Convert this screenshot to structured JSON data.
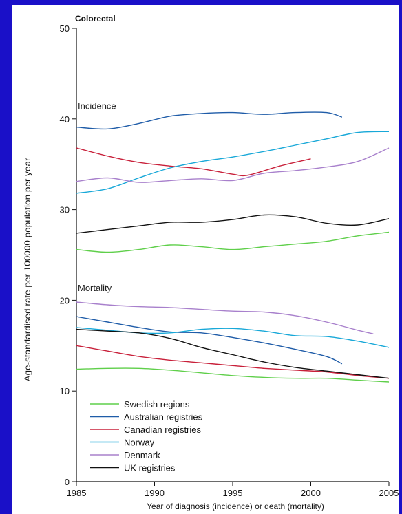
{
  "chart_data": {
    "type": "line",
    "title": "Colorectal",
    "xlabel": "Year of diagnosis (incidence) or death (mortality)",
    "ylabel": "Age-standardised rate per 100000 population per year",
    "xlim": [
      1985,
      2005
    ],
    "ylim": [
      0,
      50
    ],
    "xticks": [
      1985,
      1990,
      1995,
      2000,
      2005
    ],
    "yticks": [
      0,
      10,
      20,
      30,
      40,
      50
    ],
    "grid": false,
    "legend_position": "bottom-left",
    "group_labels": [
      {
        "text": "Incidence",
        "x": 1985,
        "y": 41.1
      },
      {
        "text": "Mortality",
        "x": 1985,
        "y": 21.0
      }
    ],
    "legend": [
      {
        "name": "Swedish regions",
        "color": "#5fcf4a"
      },
      {
        "name": "Australian registries",
        "color": "#1f5ca8"
      },
      {
        "name": "Canadian registries",
        "color": "#c8203a"
      },
      {
        "name": "Norway",
        "color": "#18a8d8"
      },
      {
        "name": "Denmark",
        "color": "#a880cc"
      },
      {
        "name": "UK registries",
        "color": "#111111"
      }
    ],
    "series": [
      {
        "group": "Incidence",
        "color": "#5fcf4a",
        "x": [
          1985,
          1987,
          1989,
          1991,
          1993,
          1995,
          1997,
          1999,
          2001,
          2003,
          2005
        ],
        "y": [
          25.6,
          25.3,
          25.6,
          26.1,
          25.9,
          25.6,
          25.9,
          26.2,
          26.5,
          27.1,
          27.5
        ]
      },
      {
        "group": "Incidence",
        "color": "#1f5ca8",
        "x": [
          1985,
          1987,
          1989,
          1991,
          1993,
          1995,
          1997,
          1999,
          2001,
          2002
        ],
        "y": [
          39.1,
          38.9,
          39.5,
          40.3,
          40.6,
          40.7,
          40.5,
          40.7,
          40.7,
          40.2
        ]
      },
      {
        "group": "Incidence",
        "color": "#c8203a",
        "x": [
          1985,
          1987,
          1989,
          1991,
          1993,
          1995,
          1996,
          1998,
          2000
        ],
        "y": [
          36.8,
          35.9,
          35.2,
          34.8,
          34.5,
          33.9,
          33.8,
          34.8,
          35.6
        ]
      },
      {
        "group": "Incidence",
        "color": "#18a8d8",
        "x": [
          1985,
          1987,
          1989,
          1991,
          1993,
          1995,
          1997,
          1999,
          2001,
          2003,
          2005
        ],
        "y": [
          31.8,
          32.3,
          33.5,
          34.6,
          35.3,
          35.8,
          36.4,
          37.1,
          37.8,
          38.5,
          38.6
        ]
      },
      {
        "group": "Incidence",
        "color": "#a880cc",
        "x": [
          1985,
          1987,
          1989,
          1991,
          1993,
          1995,
          1997,
          1999,
          2001,
          2003,
          2005
        ],
        "y": [
          33.1,
          33.5,
          33.0,
          33.2,
          33.4,
          33.2,
          34.0,
          34.3,
          34.7,
          35.3,
          36.8
        ]
      },
      {
        "group": "Incidence",
        "color": "#111111",
        "x": [
          1985,
          1987,
          1989,
          1991,
          1993,
          1995,
          1997,
          1999,
          2001,
          2003,
          2005
        ],
        "y": [
          27.4,
          27.8,
          28.2,
          28.6,
          28.6,
          28.9,
          29.4,
          29.2,
          28.5,
          28.3,
          29.0
        ]
      },
      {
        "group": "Mortality",
        "color": "#5fcf4a",
        "x": [
          1985,
          1987,
          1989,
          1991,
          1993,
          1995,
          1997,
          1999,
          2001,
          2003,
          2005
        ],
        "y": [
          12.4,
          12.5,
          12.5,
          12.3,
          12.0,
          11.7,
          11.5,
          11.4,
          11.4,
          11.2,
          11.0
        ]
      },
      {
        "group": "Mortality",
        "color": "#1f5ca8",
        "x": [
          1985,
          1987,
          1989,
          1991,
          1993,
          1995,
          1997,
          1999,
          2001,
          2002
        ],
        "y": [
          18.2,
          17.6,
          17.0,
          16.5,
          16.4,
          15.9,
          15.3,
          14.6,
          13.8,
          13.0
        ]
      },
      {
        "group": "Mortality",
        "color": "#c8203a",
        "x": [
          1985,
          1987,
          1989,
          1991,
          1993,
          1995,
          1997,
          1999,
          2001,
          2003,
          2005
        ],
        "y": [
          15.0,
          14.4,
          13.8,
          13.4,
          13.1,
          12.8,
          12.5,
          12.3,
          12.1,
          11.7,
          11.4
        ]
      },
      {
        "group": "Mortality",
        "color": "#18a8d8",
        "x": [
          1985,
          1987,
          1989,
          1991,
          1993,
          1995,
          1997,
          1999,
          2001,
          2003,
          2005
        ],
        "y": [
          17.0,
          16.7,
          16.4,
          16.4,
          16.8,
          16.9,
          16.6,
          16.1,
          16.0,
          15.5,
          14.8
        ]
      },
      {
        "group": "Mortality",
        "color": "#a880cc",
        "x": [
          1985,
          1987,
          1989,
          1991,
          1993,
          1995,
          1997,
          1999,
          2001,
          2003,
          2004
        ],
        "y": [
          19.8,
          19.5,
          19.3,
          19.2,
          19.0,
          18.8,
          18.7,
          18.3,
          17.6,
          16.7,
          16.3
        ]
      },
      {
        "group": "Mortality",
        "color": "#111111",
        "x": [
          1985,
          1987,
          1989,
          1991,
          1993,
          1995,
          1997,
          1999,
          2001,
          2003,
          2005
        ],
        "y": [
          16.8,
          16.6,
          16.4,
          15.8,
          14.8,
          14.0,
          13.2,
          12.6,
          12.2,
          11.8,
          11.4
        ]
      }
    ]
  }
}
